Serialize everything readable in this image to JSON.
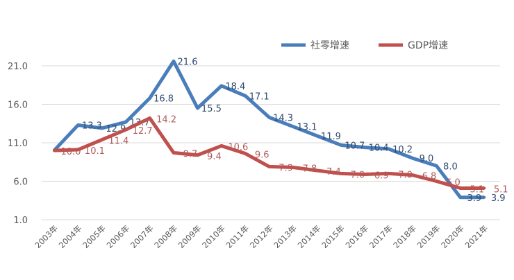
{
  "chart_data": {
    "type": "line",
    "title": "",
    "xlabel": "",
    "ylabel": "",
    "ylim": [
      1.0,
      21.0
    ],
    "yticks": [
      "21.0",
      "16.0",
      "11.0",
      "6.0",
      "1.0"
    ],
    "ytick_values": [
      21,
      16,
      11,
      6,
      1
    ],
    "grid": true,
    "legend_position": "top-right",
    "categories": [
      "2003年",
      "2004年",
      "2005年",
      "2006年",
      "2007年",
      "2008年",
      "2009年",
      "2010年",
      "2011年",
      "2012年",
      "2013年",
      "2014年",
      "2015年",
      "2016年",
      "2017年",
      "2018年",
      "2019年",
      "2020年",
      "2021年"
    ],
    "series": [
      {
        "name": "社零增速",
        "color": "#4a7ebb",
        "values": [
          10.0,
          13.3,
          12.9,
          13.7,
          16.8,
          21.6,
          15.5,
          18.4,
          17.1,
          14.3,
          13.1,
          11.9,
          10.7,
          10.4,
          10.2,
          9.0,
          8.0,
          3.9,
          3.9
        ],
        "labels": [
          null,
          "13.3",
          "12.9",
          "13.7",
          "16.8",
          "21.6",
          "15.5",
          "18.4",
          "17.1",
          "14.3",
          "13.1",
          "11.9",
          "10.7",
          "10.4",
          "10.2",
          "9.0",
          "8.0",
          "3.9",
          "3.9"
        ],
        "label_color": "#2e4a6e"
      },
      {
        "name": "GDP增速",
        "color": "#c0504d",
        "values": [
          10.0,
          10.1,
          11.4,
          12.7,
          14.2,
          9.7,
          9.4,
          10.6,
          9.6,
          7.9,
          7.8,
          7.4,
          7.0,
          6.9,
          7.0,
          6.8,
          6.0,
          5.1,
          5.1
        ],
        "labels": [
          "10.0",
          "10.1",
          "11.4",
          "12.7",
          "14.2",
          "9.7",
          "9.4",
          "10.6",
          "9.6",
          "7.9",
          "7.8",
          "7.4",
          "7.0",
          "6.9",
          "7.0",
          "6.8",
          "6.0",
          "5.1",
          "5.1"
        ],
        "label_color": "#b05a56"
      }
    ]
  }
}
